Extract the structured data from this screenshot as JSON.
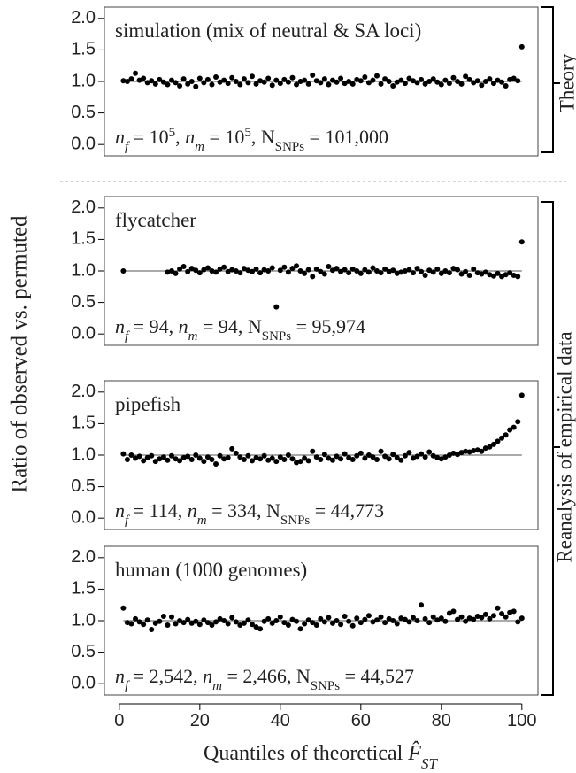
{
  "y_label": "Ratio of observed vs. permuted",
  "x_label": {
    "text": "Quantiles of theoretical",
    "symbol": "F̂",
    "subscript": "ST"
  },
  "groups": [
    {
      "label": "Theory"
    },
    {
      "label": "Reanalysis of empirical data"
    }
  ],
  "chart_data": [
    {
      "type": "scatter",
      "title": "simulation (mix of neutral & SA loci)",
      "annotation": [
        {
          "t": "n",
          "s": "italic"
        },
        {
          "t": "f",
          "s": "italic-sub"
        },
        {
          "t": " = 10",
          "s": "normal"
        },
        {
          "t": "5",
          "s": "sup"
        },
        {
          "t": ", ",
          "s": "normal"
        },
        {
          "t": "n",
          "s": "italic"
        },
        {
          "t": "m",
          "s": "italic-sub"
        },
        {
          "t": " = 10",
          "s": "normal"
        },
        {
          "t": "5",
          "s": "sup"
        },
        {
          "t": ", N",
          "s": "normal"
        },
        {
          "t": "SNPs",
          "s": "sub"
        },
        {
          "t": " = 101,000",
          "s": "normal"
        }
      ],
      "color": "#000000",
      "reference_line": 1,
      "xlim": [
        -3.7,
        104
      ],
      "ylim": [
        -0.18,
        2.18
      ],
      "yticks": [
        {
          "value": 0,
          "label": "0.0"
        },
        0.5,
        {
          "value": 1,
          "label": "1.0"
        },
        1.5,
        {
          "value": 2,
          "label": "2.0"
        }
      ],
      "x": [
        1,
        2,
        3,
        4,
        5,
        6,
        7,
        8,
        9,
        10,
        11,
        12,
        13,
        14,
        15,
        16,
        17,
        18,
        19,
        20,
        21,
        22,
        23,
        24,
        25,
        26,
        27,
        28,
        29,
        30,
        31,
        32,
        33,
        34,
        35,
        36,
        37,
        38,
        39,
        40,
        41,
        42,
        43,
        44,
        45,
        46,
        47,
        48,
        49,
        50,
        51,
        52,
        53,
        54,
        55,
        56,
        57,
        58,
        59,
        60,
        61,
        62,
        63,
        64,
        65,
        66,
        67,
        68,
        69,
        70,
        71,
        72,
        73,
        74,
        75,
        76,
        77,
        78,
        79,
        80,
        81,
        82,
        83,
        84,
        85,
        86,
        87,
        88,
        89,
        90,
        91,
        92,
        93,
        94,
        95,
        96,
        97,
        98,
        99,
        100
      ],
      "values": [
        1.01,
        1.0,
        1.04,
        1.13,
        1.02,
        1.05,
        0.98,
        1.01,
        0.96,
        1.03,
        0.99,
        0.95,
        1.02,
        0.98,
        0.93,
        1.04,
        0.96,
        1.0,
        0.92,
        1.05,
        0.98,
        1.03,
        0.95,
        1.07,
        0.99,
        1.02,
        0.97,
        1.06,
        1.0,
        0.95,
        1.04,
        0.98,
        1.08,
        0.96,
        1.01,
        0.99,
        1.05,
        0.94,
        1.02,
        0.97,
        1.03,
        0.99,
        1.06,
        0.95,
        1.0,
        1.02,
        0.96,
        1.1,
        1.01,
        0.98,
        1.04,
        0.95,
        1.02,
        0.99,
        1.05,
        0.97,
        1.0,
        0.96,
        1.03,
        1.01,
        1.07,
        0.98,
        1.02,
        1.09,
        0.96,
        1.04,
        1.0,
        0.93,
        0.99,
        1.02,
        0.97,
        1.05,
        1.01,
        0.98,
        1.03,
        0.96,
        1.0,
        1.04,
        0.99,
        0.95,
        1.02,
        0.97,
        1.06,
        1.0,
        0.96,
        1.08,
        1.03,
        0.98,
        1.01,
        0.94,
        1.0,
        1.04,
        0.97,
        1.02,
        0.99,
        0.93,
        1.03,
        1.05,
        1.01,
        1.55
      ]
    },
    {
      "type": "scatter",
      "title": "flycatcher",
      "annotation": [
        {
          "t": "n",
          "s": "italic"
        },
        {
          "t": "f",
          "s": "italic-sub"
        },
        {
          "t": " = 94, ",
          "s": "normal"
        },
        {
          "t": "n",
          "s": "italic"
        },
        {
          "t": "m",
          "s": "italic-sub"
        },
        {
          "t": " = 94, N",
          "s": "normal"
        },
        {
          "t": "SNPs",
          "s": "sub"
        },
        {
          "t": " = 95,974",
          "s": "normal"
        }
      ],
      "color": "#000000",
      "reference_line": 1,
      "xlim": [
        -3.7,
        104
      ],
      "ylim": [
        -0.18,
        2.18
      ],
      "yticks": [
        {
          "value": 0,
          "label": "0.0"
        },
        0.5,
        {
          "value": 1,
          "label": "1.0"
        },
        1.5,
        {
          "value": 2,
          "label": "2.0"
        }
      ],
      "x": [
        1,
        2,
        3,
        4,
        5,
        6,
        7,
        8,
        9,
        10,
        11,
        12,
        13,
        14,
        15,
        16,
        17,
        18,
        19,
        20,
        21,
        22,
        23,
        24,
        25,
        26,
        27,
        28,
        29,
        30,
        31,
        32,
        33,
        34,
        35,
        36,
        37,
        38,
        39,
        40,
        41,
        42,
        43,
        44,
        45,
        46,
        47,
        48,
        49,
        50,
        51,
        52,
        53,
        54,
        55,
        56,
        57,
        58,
        59,
        60,
        61,
        62,
        63,
        64,
        65,
        66,
        67,
        68,
        69,
        70,
        71,
        72,
        73,
        74,
        75,
        76,
        77,
        78,
        79,
        80,
        81,
        82,
        83,
        84,
        85,
        86,
        87,
        88,
        89,
        90,
        91,
        92,
        93,
        94,
        95,
        96,
        97,
        98,
        99,
        100
      ],
      "values": [
        1.0,
        null,
        null,
        null,
        null,
        null,
        null,
        null,
        null,
        null,
        null,
        0.98,
        1.0,
        0.96,
        1.03,
        1.07,
        0.99,
        1.04,
        1.01,
        0.97,
        1.02,
        1.05,
        1.0,
        0.98,
        1.03,
        1.06,
        0.99,
        1.02,
        1.0,
        0.97,
        1.04,
        1.01,
        0.99,
        1.03,
        0.97,
        1.02,
        1.0,
        1.05,
        0.43,
        1.01,
        1.06,
        0.98,
        1.04,
        1.08,
        1.0,
        0.96,
        1.02,
        0.91,
        1.03,
        0.99,
        0.95,
        1.07,
        1.01,
        1.04,
        0.99,
        1.02,
        0.97,
        1.03,
        1.0,
        0.96,
        1.02,
        0.98,
        1.05,
        1.0,
        0.97,
        1.03,
        0.99,
        1.01,
        0.96,
        0.98,
        1.0,
        1.02,
        0.97,
        1.04,
        0.99,
        0.93,
        1.01,
        0.98,
        1.03,
        0.96,
        1.0,
        0.97,
        1.04,
        1.02,
        0.95,
        0.99,
        0.93,
        1.03,
        0.97,
        0.95,
        0.98,
        0.94,
        0.92,
        0.96,
        0.91,
        0.94,
        0.97,
        0.93,
        0.91,
        1.46
      ]
    },
    {
      "type": "scatter",
      "title": "pipefish",
      "annotation": [
        {
          "t": "n",
          "s": "italic"
        },
        {
          "t": "f",
          "s": "italic-sub"
        },
        {
          "t": " = 114, ",
          "s": "normal"
        },
        {
          "t": "n",
          "s": "italic"
        },
        {
          "t": "m",
          "s": "italic-sub"
        },
        {
          "t": " = 334, N",
          "s": "normal"
        },
        {
          "t": "SNPs",
          "s": "sub"
        },
        {
          "t": " = 44,773",
          "s": "normal"
        }
      ],
      "color": "#000000",
      "reference_line": 1,
      "xlim": [
        -3.7,
        104
      ],
      "ylim": [
        -0.18,
        2.18
      ],
      "yticks": [
        {
          "value": 0,
          "label": "0.0"
        },
        0.5,
        {
          "value": 1,
          "label": "1.0"
        },
        1.5,
        {
          "value": 2,
          "label": "2.0"
        }
      ],
      "x": [
        1,
        2,
        3,
        4,
        5,
        6,
        7,
        8,
        9,
        10,
        11,
        12,
        13,
        14,
        15,
        16,
        17,
        18,
        19,
        20,
        21,
        22,
        23,
        24,
        25,
        26,
        27,
        28,
        29,
        30,
        31,
        32,
        33,
        34,
        35,
        36,
        37,
        38,
        39,
        40,
        41,
        42,
        43,
        44,
        45,
        46,
        47,
        48,
        49,
        50,
        51,
        52,
        53,
        54,
        55,
        56,
        57,
        58,
        59,
        60,
        61,
        62,
        63,
        64,
        65,
        66,
        67,
        68,
        69,
        70,
        71,
        72,
        73,
        74,
        75,
        76,
        77,
        78,
        79,
        80,
        81,
        82,
        83,
        84,
        85,
        86,
        87,
        88,
        89,
        90,
        91,
        92,
        93,
        94,
        95,
        96,
        97,
        98,
        99,
        100
      ],
      "values": [
        1.02,
        0.93,
        1.0,
        0.95,
        0.98,
        0.91,
        0.96,
        0.99,
        0.9,
        0.94,
        0.97,
        0.92,
        0.99,
        0.94,
        0.91,
        0.96,
        0.98,
        0.93,
        1.0,
        0.95,
        0.9,
        0.97,
        0.93,
        0.86,
        0.99,
        0.94,
        0.96,
        1.1,
        1.03,
        0.97,
        0.93,
        0.99,
        0.91,
        0.96,
        0.94,
        0.99,
        0.92,
        0.95,
        0.9,
        0.97,
        0.93,
        1.0,
        0.94,
        0.88,
        0.9,
        0.95,
        0.91,
        1.06,
        0.97,
        0.93,
        1.01,
        0.95,
        0.92,
        0.98,
        0.94,
        1.02,
        0.96,
        0.93,
        0.99,
        1.03,
        0.95,
        1.0,
        0.97,
        0.93,
        1.06,
        0.98,
        0.94,
        1.01,
        0.96,
        0.92,
        0.99,
        1.04,
        0.95,
        0.98,
        1.02,
        0.97,
        1.05,
        0.99,
        0.96,
        0.94,
        0.97,
        1.0,
        1.03,
        1.01,
        1.04,
        1.06,
        1.05,
        1.07,
        1.08,
        1.06,
        1.11,
        1.13,
        1.17,
        1.22,
        1.27,
        1.32,
        1.4,
        1.44,
        1.53,
        1.95
      ]
    },
    {
      "type": "scatter",
      "title": "human (1000 genomes)",
      "annotation": [
        {
          "t": "n",
          "s": "italic"
        },
        {
          "t": "f",
          "s": "italic-sub"
        },
        {
          "t": " = 2,542, ",
          "s": "normal"
        },
        {
          "t": "n",
          "s": "italic"
        },
        {
          "t": "m",
          "s": "italic-sub"
        },
        {
          "t": " = 2,466, N",
          "s": "normal"
        },
        {
          "t": "SNPs",
          "s": "sub"
        },
        {
          "t": " = 44,527",
          "s": "normal"
        }
      ],
      "color": "#000000",
      "reference_line": 1,
      "xlim": [
        -3.7,
        104
      ],
      "ylim": [
        -0.18,
        2.18
      ],
      "xticks": [
        0,
        20,
        40,
        60,
        80,
        100
      ],
      "yticks": [
        {
          "value": 0,
          "label": "0.0"
        },
        0.5,
        {
          "value": 1,
          "label": "1.0"
        },
        1.5,
        {
          "value": 2,
          "label": "2.0"
        }
      ],
      "x": [
        1,
        2,
        3,
        4,
        5,
        6,
        7,
        8,
        9,
        10,
        11,
        12,
        13,
        14,
        15,
        16,
        17,
        18,
        19,
        20,
        21,
        22,
        23,
        24,
        25,
        26,
        27,
        28,
        29,
        30,
        31,
        32,
        33,
        34,
        35,
        36,
        37,
        38,
        39,
        40,
        41,
        42,
        43,
        44,
        45,
        46,
        47,
        48,
        49,
        50,
        51,
        52,
        53,
        54,
        55,
        56,
        57,
        58,
        59,
        60,
        61,
        62,
        63,
        64,
        65,
        66,
        67,
        68,
        69,
        70,
        71,
        72,
        73,
        74,
        75,
        76,
        77,
        78,
        79,
        80,
        81,
        82,
        83,
        84,
        85,
        86,
        87,
        88,
        89,
        90,
        91,
        92,
        93,
        94,
        95,
        96,
        97,
        98,
        99,
        100
      ],
      "values": [
        1.2,
        0.97,
        0.95,
        1.03,
        0.98,
        0.94,
        1.01,
        0.86,
        0.96,
        0.99,
        1.07,
        0.93,
        1.06,
        0.95,
        1.0,
        0.97,
        1.02,
        0.96,
        0.99,
        0.94,
        1.01,
        0.97,
        0.93,
        0.98,
        1.03,
        1.0,
        0.95,
        1.05,
        0.98,
        0.93,
        0.96,
        1.01,
        0.94,
        0.9,
        0.87,
        0.99,
        1.03,
        0.96,
        1.0,
        1.06,
        0.97,
        0.93,
        1.02,
        0.99,
        0.87,
        0.95,
        1.01,
        0.97,
        0.93,
        1.03,
        0.98,
        1.05,
        0.96,
        1.0,
        0.94,
        1.07,
        0.99,
        0.92,
        1.04,
        0.97,
        1.02,
        1.08,
        0.98,
        1.01,
        1.06,
        0.97,
        1.03,
        1.0,
        0.95,
        1.04,
        1.02,
        0.98,
        1.05,
        1.0,
        1.25,
        1.03,
        0.97,
        1.06,
        1.01,
        1.04,
        0.99,
        1.12,
        1.15,
        1.02,
        1.06,
        0.99,
        1.04,
        1.02,
        1.07,
        1.05,
        1.1,
        1.03,
        1.08,
        1.2,
        1.11,
        1.06,
        1.13,
        1.15,
        0.98,
        1.04
      ]
    }
  ]
}
